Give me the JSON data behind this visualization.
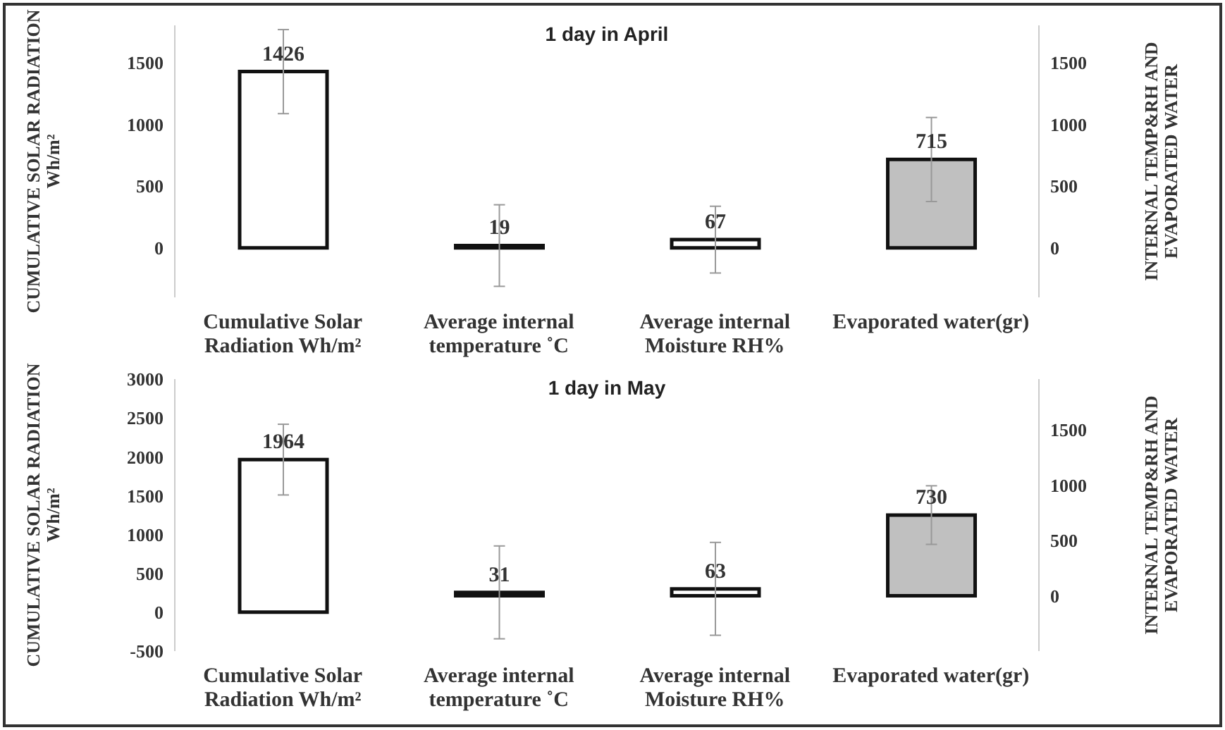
{
  "chart_data": [
    {
      "type": "bar",
      "title": "1 day in April",
      "ylabel": "CUMULATIVE SOLAR RADIATION Wh/m²",
      "y2label": "INTERNAL TEMP&RH AND EVAPORATED WATER",
      "categories": [
        "Cumulative Solar Radiation Wh/m²",
        "Average internal temperature ˚C",
        "Average internal Moisture RH%",
        "Evaporated water(gr)"
      ],
      "series": [
        {
          "values": [
            1426,
            null,
            null,
            null
          ],
          "colors": [
            "#ffffff",
            null,
            null,
            null
          ],
          "errors": [
            340,
            null,
            null,
            null
          ]
        },
        {
          "axis": "y2",
          "values": [
            null,
            19,
            67,
            715
          ],
          "colors": [
            null,
            "#111111",
            "#ffffff",
            "#c0c0c0"
          ],
          "errors": [
            null,
            330,
            270,
            340
          ]
        }
      ],
      "ylim": [
        -400,
        1800
      ],
      "yticks": [
        0,
        500,
        1000,
        1500
      ],
      "y2lim": [
        -400,
        1800
      ],
      "y2ticks": [
        0,
        500,
        1000,
        1500
      ],
      "data_labels": true,
      "grid": false,
      "legend": false
    },
    {
      "type": "bar",
      "title": "1 day in May",
      "ylabel": "CUMULATIVE SOLAR RADIATION Wh/m²",
      "y2label": "INTERNAL TEMP&RH AND EVAPORATED WATER",
      "categories": [
        "Cumulative Solar Radiation Wh/m²",
        "Average internal temperature ˚C",
        "Average internal Moisture RH%",
        "Evaporated water(gr)"
      ],
      "series": [
        {
          "values": [
            1964,
            null,
            null,
            null
          ],
          "colors": [
            "#ffffff",
            null,
            null,
            null
          ],
          "errors": [
            455,
            null,
            null,
            null
          ]
        },
        {
          "axis": "y2",
          "values": [
            null,
            31,
            63,
            730
          ],
          "colors": [
            null,
            "#111111",
            "#ffffff",
            "#c0c0c0"
          ],
          "errors": [
            null,
            420,
            420,
            265
          ]
        }
      ],
      "ylim": [
        -500,
        3000
      ],
      "yticks": [
        -500,
        0,
        500,
        1000,
        1500,
        2000,
        2500,
        3000
      ],
      "y2lim": [
        -500,
        1960
      ],
      "y2ticks": [
        0,
        500,
        1000,
        1500
      ],
      "data_labels": true,
      "grid": false,
      "legend": false
    }
  ]
}
